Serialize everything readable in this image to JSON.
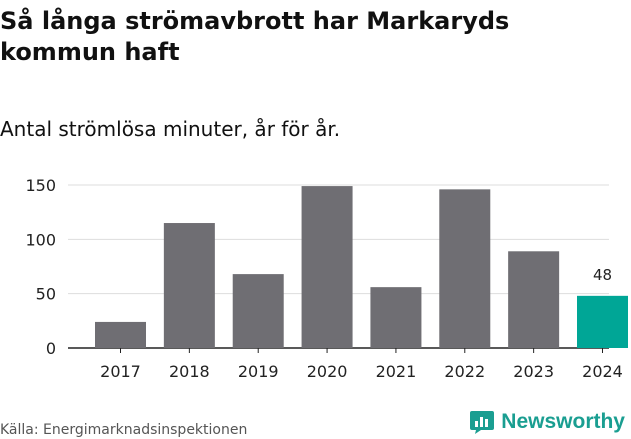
{
  "title": "Så långa strömavbrott har Markaryds kommun haft",
  "subtitle": "Antal strömlösa minuter, år för år.",
  "source": "Källa: Energimarknadsinspektionen",
  "logo": {
    "text": "Newsworthy",
    "icon": "newsworthy-logo-icon",
    "color": "#1a9e91"
  },
  "chart_data": {
    "type": "bar",
    "categories": [
      "2017",
      "2018",
      "2019",
      "2020",
      "2021",
      "2022",
      "2023",
      "2024"
    ],
    "values": [
      24,
      115,
      68,
      149,
      56,
      146,
      89,
      48
    ],
    "ylim": [
      0,
      150
    ],
    "yticks": [
      0,
      50,
      100,
      150
    ],
    "grid": true,
    "highlight": {
      "category": "2024",
      "label": "48",
      "color": "#00a696"
    },
    "bar_color": "#6f6e73",
    "xlabel": "",
    "ylabel": ""
  }
}
